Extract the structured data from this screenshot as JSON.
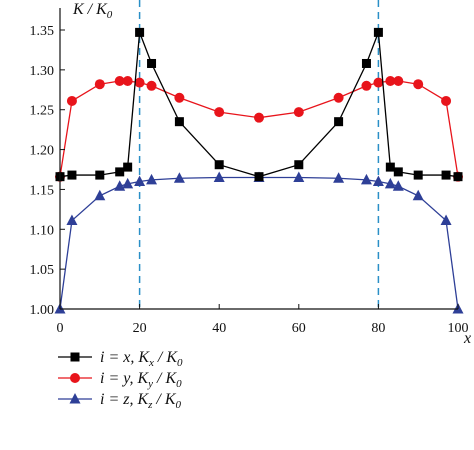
{
  "chart_data": {
    "type": "line",
    "ylabel": "K / K0",
    "ylabel_parts": {
      "main": "K / K",
      "sub": "0"
    },
    "xlabel": "x",
    "xlim": [
      0,
      100
    ],
    "ylim": [
      1.0,
      1.35
    ],
    "xticks": [
      0,
      20,
      40,
      60,
      80,
      100
    ],
    "yticks": [
      1.0,
      1.05,
      1.1,
      1.15,
      1.2,
      1.25,
      1.3,
      1.35
    ],
    "ytick_labels": [
      "1.00",
      "1.05",
      "1.10",
      "1.15",
      "1.20",
      "1.25",
      "1.30",
      "1.35"
    ],
    "xtick_labels": [
      "0",
      "20",
      "40",
      "60",
      "80",
      "100"
    ],
    "reference_lines_x": [
      20,
      80
    ],
    "legend_position": "bottom-left",
    "series": [
      {
        "name": "i = x, Kx / K0",
        "legend": {
          "prefix": "i = x, K",
          "sub": "x",
          "mid": " / K",
          "sub2": "0"
        },
        "color": "#000000",
        "marker": "square",
        "x": [
          0,
          3,
          10,
          15,
          17,
          20,
          23,
          30,
          40,
          50,
          60,
          70,
          77,
          80,
          83,
          85,
          90,
          97,
          100
        ],
        "y": [
          1.166,
          1.168,
          1.168,
          1.172,
          1.178,
          1.347,
          1.308,
          1.235,
          1.181,
          1.166,
          1.181,
          1.235,
          1.308,
          1.347,
          1.178,
          1.172,
          1.168,
          1.168,
          1.166
        ]
      },
      {
        "name": "i = y, Ky / K0",
        "legend": {
          "prefix": "i = y, K",
          "sub": "y",
          "mid": " / K",
          "sub2": "0"
        },
        "color": "#e8141b",
        "marker": "circle",
        "x": [
          0,
          3,
          10,
          15,
          17,
          20,
          23,
          30,
          40,
          50,
          60,
          70,
          77,
          80,
          83,
          85,
          90,
          97,
          100
        ],
        "y": [
          1.166,
          1.261,
          1.282,
          1.286,
          1.286,
          1.284,
          1.28,
          1.265,
          1.247,
          1.24,
          1.247,
          1.265,
          1.28,
          1.284,
          1.286,
          1.286,
          1.282,
          1.261,
          1.166
        ]
      },
      {
        "name": "i = z, Kz / K0",
        "legend": {
          "prefix": "i = z, K",
          "sub": "z",
          "mid": " / K",
          "sub2": "0"
        },
        "color": "#2e3f97",
        "marker": "triangle",
        "x": [
          0,
          3,
          10,
          15,
          17,
          20,
          23,
          30,
          40,
          50,
          60,
          70,
          77,
          80,
          83,
          85,
          90,
          97,
          100
        ],
        "y": [
          1.0,
          1.111,
          1.142,
          1.154,
          1.157,
          1.16,
          1.162,
          1.164,
          1.165,
          1.165,
          1.165,
          1.164,
          1.162,
          1.16,
          1.157,
          1.154,
          1.142,
          1.111,
          1.0
        ]
      }
    ]
  }
}
